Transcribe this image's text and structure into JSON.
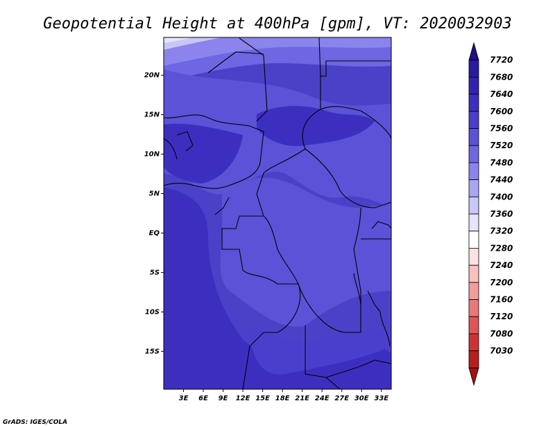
{
  "chart_data": {
    "type": "heatmap",
    "title": "Geopotential Height at 400hPa [gpm], VT: 2020032903",
    "x_ticks": [
      "3E",
      "6E",
      "9E",
      "12E",
      "15E",
      "18E",
      "21E",
      "24E",
      "27E",
      "30E",
      "33E"
    ],
    "y_ticks": [
      "20N",
      "15N",
      "10N",
      "5N",
      "EQ",
      "5S",
      "10S",
      "15S"
    ],
    "lon_range": [
      0,
      34.5
    ],
    "lat_range": [
      -19.8,
      24.8
    ],
    "colorbar": {
      "levels": [
        "7720",
        "7680",
        "7640",
        "7600",
        "7560",
        "7520",
        "7480",
        "7440",
        "7400",
        "7360",
        "7320",
        "7280",
        "7240",
        "7200",
        "7160",
        "7120",
        "7080",
        "7030"
      ],
      "colors": [
        "#1f0f8c",
        "#291aa0",
        "#3322b0",
        "#3c2fc0",
        "#4a3fcc",
        "#5b52d8",
        "#6e66e2",
        "#8a84ec",
        "#aaa6f2",
        "#c9c6f8",
        "#e6e4fc",
        "#ffffff",
        "#fde0e0",
        "#f9c0c0",
        "#f29c9c",
        "#ea7878",
        "#de5656",
        "#cc3434",
        "#b81e1e",
        "#a31212"
      ]
    },
    "grid": false,
    "credit": "GrADS: IGES/COLA"
  }
}
